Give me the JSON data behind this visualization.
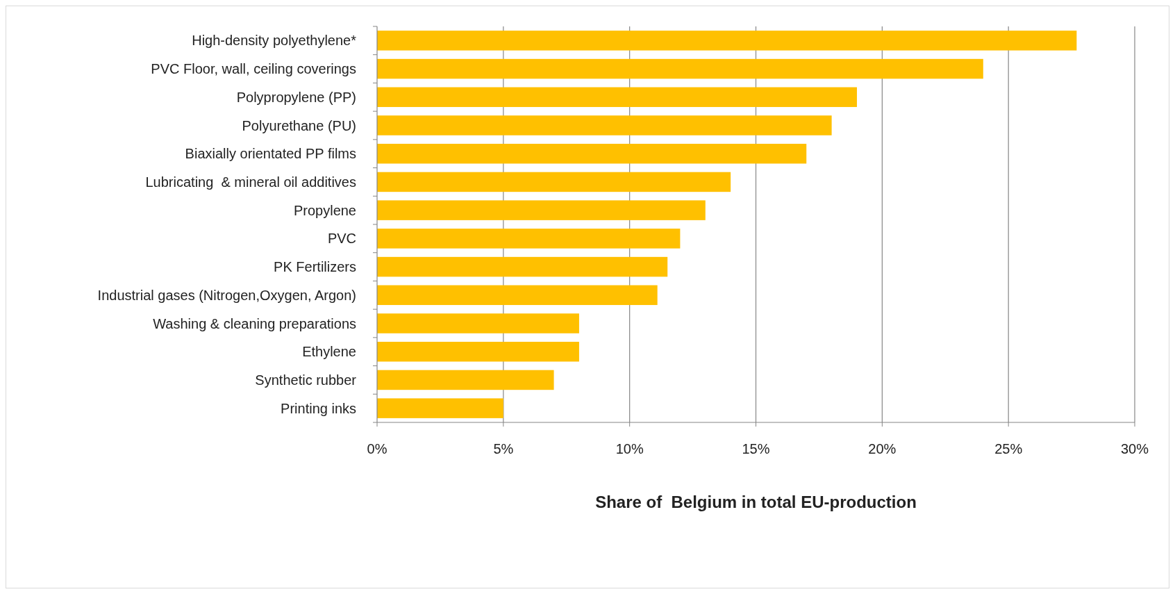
{
  "chart_data": {
    "type": "bar",
    "orientation": "horizontal",
    "xlabel": "Share of  Belgium in total EU-production",
    "categories": [
      "High-density polyethylene*",
      "PVC Floor, wall, ceiling coverings",
      "Polypropylene (PP)",
      "Polyurethane (PU)",
      "Biaxially orientated PP films",
      "Lubricating  & mineral oil additives",
      "Propylene",
      "PVC",
      "PK Fertilizers",
      "Industrial gases (Nitrogen,Oxygen, Argon)",
      "Washing & cleaning preparations",
      "Ethylene",
      "Synthetic rubber",
      "Printing inks"
    ],
    "values": [
      27.7,
      24,
      19,
      18,
      17,
      14,
      13,
      12,
      11.5,
      11.1,
      8,
      8,
      7,
      5
    ],
    "color": "#ffc000",
    "xlim": [
      0,
      30
    ],
    "xticks": [
      {
        "value": 0,
        "label": "0%"
      },
      {
        "value": 5,
        "label": "5%"
      },
      {
        "value": 10,
        "label": "10%"
      },
      {
        "value": 15,
        "label": "15%"
      },
      {
        "value": 20,
        "label": "20%"
      },
      {
        "value": 25,
        "label": "25%"
      },
      {
        "value": 30,
        "label": "30%"
      }
    ],
    "grid": "x"
  }
}
